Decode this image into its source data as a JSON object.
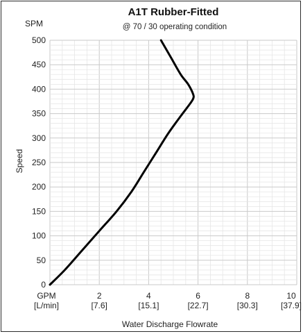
{
  "chart_data": {
    "type": "line",
    "title": "A1T Rubber-Fitted",
    "subtitle": "@ 70 / 30 operating condition",
    "ylabel": "Speed",
    "y_unit_label": "SPM",
    "xlabel": "Water Discharge Flowrate",
    "x_unit_label": "GPM",
    "x_unit_label_secondary": "[L/min]",
    "xlim": [
      0,
      10
    ],
    "ylim": [
      0,
      500
    ],
    "x_ticks": [
      {
        "value": 0,
        "label": "GPM",
        "sublabel": "[L/min]"
      },
      {
        "value": 2,
        "label": "2",
        "sublabel": "[7.6]"
      },
      {
        "value": 4,
        "label": "4",
        "sublabel": "[15.1]"
      },
      {
        "value": 6,
        "label": "6",
        "sublabel": "[22.7]"
      },
      {
        "value": 8,
        "label": "8",
        "sublabel": "[30.3]"
      },
      {
        "value": 10,
        "label": "10",
        "sublabel": "[37.9]"
      }
    ],
    "y_ticks": [
      0,
      50,
      100,
      150,
      200,
      250,
      300,
      350,
      400,
      450,
      500
    ],
    "grid": true,
    "series": [
      {
        "color": "#000000",
        "x": [
          0,
          0.6,
          1.3,
          2.0,
          2.7,
          3.3,
          3.8,
          4.3,
          4.8,
          5.3,
          5.6,
          5.8,
          5.8,
          5.6,
          5.3,
          4.9,
          4.5
        ],
        "y": [
          0,
          30,
          70,
          110,
          150,
          190,
          230,
          270,
          310,
          345,
          365,
          380,
          390,
          410,
          430,
          465,
          500
        ]
      }
    ]
  }
}
